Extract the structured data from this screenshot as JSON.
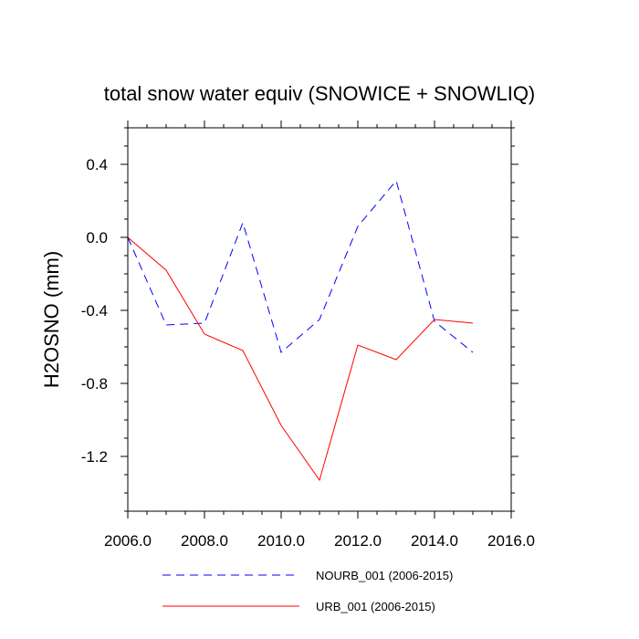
{
  "chart_data": {
    "type": "line",
    "title": "total snow water equiv (SNOWICE + SNOWLIQ)",
    "xlabel": "",
    "ylabel": "H2OSNO  (mm)",
    "xlim": [
      2006,
      2016
    ],
    "ylim": [
      -1.5,
      0.6
    ],
    "xticks": [
      2006,
      2008,
      2010,
      2012,
      2014,
      2016
    ],
    "xtick_labels": [
      "2006.0",
      "2008.0",
      "2010.0",
      "2012.0",
      "2014.0",
      "2016.0"
    ],
    "yticks": [
      0.4,
      0.0,
      -0.4,
      -0.8,
      -1.2
    ],
    "ytick_labels": [
      "0.4",
      "0.0",
      "-0.4",
      "-0.8",
      "-1.2"
    ],
    "grid": false,
    "legend_position": "bottom",
    "series": [
      {
        "name": "NOURB_001 (2006-2015)",
        "color": "#0000ff",
        "style": "dashed",
        "x": [
          2006,
          2007,
          2008,
          2009,
          2010,
          2011,
          2012,
          2013,
          2014,
          2015
        ],
        "values": [
          0.0,
          -0.48,
          -0.47,
          0.08,
          -0.63,
          -0.45,
          0.06,
          0.31,
          -0.46,
          -0.63
        ]
      },
      {
        "name": "URB_001 (2006-2015)",
        "color": "#ff0000",
        "style": "solid",
        "x": [
          2006,
          2007,
          2008,
          2009,
          2010,
          2011,
          2012,
          2013,
          2014,
          2015
        ],
        "values": [
          0.0,
          -0.18,
          -0.53,
          -0.62,
          -1.03,
          -1.33,
          -0.59,
          -0.67,
          -0.45,
          -0.47
        ]
      }
    ]
  }
}
